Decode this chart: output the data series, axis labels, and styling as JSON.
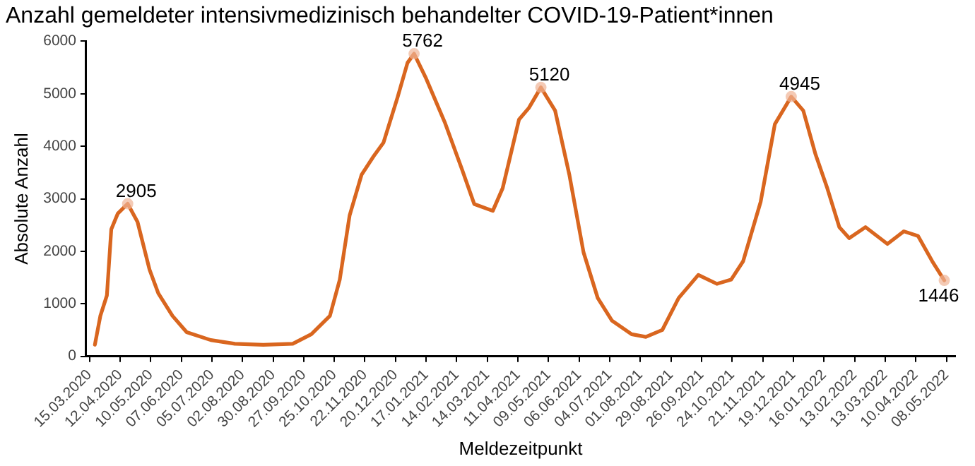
{
  "chart_data": {
    "type": "line",
    "title": "Anzahl gemeldeter intensivmedizinisch behandelter COVID-19-Patient*innen",
    "xlabel": "Meldezeitpunkt",
    "ylabel": "Absolute Anzahl",
    "x": [
      "2020-03-20",
      "2020-03-25",
      "2020-03-31",
      "2020-04-04",
      "2020-04-10",
      "2020-04-19",
      "2020-04-28",
      "2020-05-09",
      "2020-05-17",
      "2020-05-30",
      "2020-06-12",
      "2020-07-04",
      "2020-07-26",
      "2020-08-21",
      "2020-09-17",
      "2020-10-04",
      "2020-10-21",
      "2020-10-30",
      "2020-11-08",
      "2020-11-19",
      "2020-11-30",
      "2020-12-09",
      "2020-12-22",
      "2020-12-31",
      "2021-01-06",
      "2021-01-17",
      "2021-02-03",
      "2021-02-19",
      "2021-03-02",
      "2021-03-19",
      "2021-03-28",
      "2021-04-12",
      "2021-04-21",
      "2021-05-02",
      "2021-05-15",
      "2021-05-28",
      "2021-06-10",
      "2021-06-23",
      "2021-07-06",
      "2021-07-24",
      "2021-08-06",
      "2021-08-21",
      "2021-09-05",
      "2021-09-23",
      "2021-10-10",
      "2021-10-23",
      "2021-11-03",
      "2021-11-19",
      "2021-12-02",
      "2021-12-17",
      "2021-12-28",
      "2022-01-08",
      "2022-01-19",
      "2022-01-30",
      "2022-02-08",
      "2022-02-23",
      "2022-03-15",
      "2022-03-30",
      "2022-04-12",
      "2022-04-25",
      "2022-05-06"
    ],
    "series": [
      {
        "color": "#d9661f",
        "values": [
          220,
          770,
          1160,
          2420,
          2720,
          2905,
          2560,
          1650,
          1200,
          770,
          460,
          310,
          240,
          220,
          240,
          420,
          770,
          1460,
          2680,
          3460,
          3810,
          4070,
          4940,
          5590,
          5762,
          5290,
          4460,
          3550,
          2900,
          2770,
          3200,
          4510,
          4730,
          5120,
          4680,
          3460,
          1980,
          1110,
          680,
          420,
          370,
          500,
          1110,
          1550,
          1380,
          1460,
          1810,
          2940,
          4420,
          4945,
          4680,
          3860,
          3200,
          2460,
          2250,
          2460,
          2140,
          2380,
          2290,
          1810,
          1446
        ],
        "value_labels": [
          null,
          null,
          null,
          null,
          null,
          "2905",
          null,
          null,
          null,
          null,
          null,
          null,
          null,
          null,
          null,
          null,
          null,
          null,
          null,
          null,
          null,
          null,
          null,
          null,
          "5762",
          null,
          null,
          null,
          null,
          null,
          null,
          null,
          null,
          "5120",
          null,
          null,
          null,
          null,
          null,
          null,
          null,
          null,
          null,
          null,
          null,
          null,
          null,
          null,
          null,
          "4945",
          null,
          null,
          null,
          null,
          null,
          null,
          null,
          null,
          null,
          null,
          "1446"
        ]
      }
    ],
    "xlim": [
      "2020-03-12",
      "2022-05-16"
    ],
    "xticks": [
      {
        "value": "2020-03-15",
        "label": "15.03.2020"
      },
      {
        "value": "2020-04-12",
        "label": "12.04.2020"
      },
      {
        "value": "2020-05-10",
        "label": "10.05.2020"
      },
      {
        "value": "2020-06-07",
        "label": "07.06.2020"
      },
      {
        "value": "2020-07-05",
        "label": "05.07.2020"
      },
      {
        "value": "2020-08-02",
        "label": "02.08.2020"
      },
      {
        "value": "2020-08-30",
        "label": "30.08.2020"
      },
      {
        "value": "2020-09-27",
        "label": "27.09.2020"
      },
      {
        "value": "2020-10-25",
        "label": "25.10.2020"
      },
      {
        "value": "2020-11-22",
        "label": "22.11.2020"
      },
      {
        "value": "2020-12-20",
        "label": "20.12.2020"
      },
      {
        "value": "2021-01-17",
        "label": "17.01.2021"
      },
      {
        "value": "2021-02-14",
        "label": "14.02.2021"
      },
      {
        "value": "2021-03-14",
        "label": "14.03.2021"
      },
      {
        "value": "2021-04-11",
        "label": "11.04.2021"
      },
      {
        "value": "2021-05-09",
        "label": "09.05.2021"
      },
      {
        "value": "2021-06-06",
        "label": "06.06.2021"
      },
      {
        "value": "2021-07-04",
        "label": "04.07.2021"
      },
      {
        "value": "2021-08-01",
        "label": "01.08.2021"
      },
      {
        "value": "2021-08-29",
        "label": "29.08.2021"
      },
      {
        "value": "2021-09-26",
        "label": "26.09.2021"
      },
      {
        "value": "2021-10-24",
        "label": "24.10.2021"
      },
      {
        "value": "2021-11-21",
        "label": "21.11.2021"
      },
      {
        "value": "2021-12-19",
        "label": "19.12.2021"
      },
      {
        "value": "2022-01-16",
        "label": "16.01.2022"
      },
      {
        "value": "2022-02-13",
        "label": "13.02.2022"
      },
      {
        "value": "2022-03-13",
        "label": "13.03.2022"
      },
      {
        "value": "2022-04-10",
        "label": "10.04.2022"
      },
      {
        "value": "2022-05-08",
        "label": "08.05.2022"
      }
    ],
    "ylim": [
      0,
      6000
    ],
    "yticks": [
      0,
      1000,
      2000,
      3000,
      4000,
      5000,
      6000
    ],
    "grid": false,
    "legend": false,
    "marker": "none",
    "line_style": "solid"
  }
}
